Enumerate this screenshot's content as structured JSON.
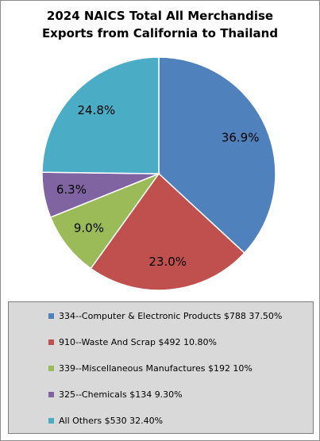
{
  "chart_data": {
    "type": "pie",
    "title_lines": [
      "2024 NAICS Total All Merchandise",
      "Exports from California to Thailand"
    ],
    "slices": [
      {
        "label": "36.9%",
        "value": 36.9,
        "color": "#4f81bd"
      },
      {
        "label": "23.0%",
        "value": 23.0,
        "color": "#c0504d"
      },
      {
        "label": "9.0%",
        "value": 9.0,
        "color": "#9bbb59"
      },
      {
        "label": "6.3%",
        "value": 6.3,
        "color": "#8064a2"
      },
      {
        "label": "24.8%",
        "value": 24.8,
        "color": "#4bacc6"
      }
    ],
    "legend_items": [
      {
        "text": "334--Computer & Electronic Products $788 37.50%",
        "color": "#4f81bd"
      },
      {
        "text": "910--Waste And Scrap $492 10.80%",
        "color": "#c0504d"
      },
      {
        "text": "339--Miscellaneous Manufactures $192 10%",
        "color": "#9bbb59"
      },
      {
        "text": "325--Chemicals $134 9.30%",
        "color": "#8064a2"
      },
      {
        "text": "All Others $530 32.40%",
        "color": "#4bacc6"
      }
    ],
    "start_angle": "12 o'clock",
    "direction": "clockwise",
    "legend_position": "bottom"
  }
}
